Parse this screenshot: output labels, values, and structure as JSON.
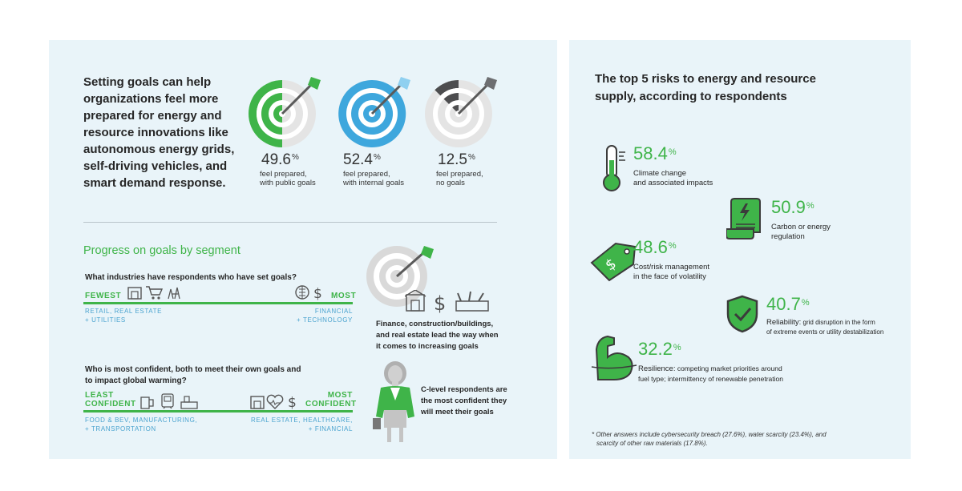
{
  "intro": "Setting goals can help organizations feel more prepared for energy and resource innovations like autonomous energy grids, self-driving vehicles, and smart demand response.",
  "targets": [
    {
      "value": "49.6",
      "unit": "%",
      "line1": "feel prepared,",
      "line2": "with public goals",
      "color": "#3fb449",
      "fraction": 0.496
    },
    {
      "value": "52.4",
      "unit": "%",
      "line1": "feel prepared,",
      "line2": "with internal goals",
      "color": "#3ea7dd",
      "fraction": 0.524
    },
    {
      "value": "12.5",
      "unit": "%",
      "line1": "feel prepared,",
      "line2": "no goals",
      "color": "#4d4d4f",
      "fraction": 0.125
    }
  ],
  "progress": {
    "title": "Progress on goals by segment",
    "q1": "What industries have respondents who have set goals?",
    "q1_left_label": "FEWEST",
    "q1_right_label": "MOST",
    "q1_left_sub": [
      "RETAIL, REAL ESTATE",
      "+ UTILITIES"
    ],
    "q1_right_sub": [
      "FINANCIAL",
      "+ TECHNOLOGY"
    ],
    "q2": [
      "Who is most confident, both to meet their own goals and",
      "to impact global warming?"
    ],
    "q2_left_label": [
      "LEAST",
      "CONFIDENT"
    ],
    "q2_right_label": [
      "MOST",
      "CONFIDENT"
    ],
    "q2_left_sub": [
      "FOOD & BEV, MANUFACTURING,",
      "+ TRANSPORTATION"
    ],
    "q2_right_sub": [
      "REAL ESTATE, HEALTHCARE,",
      "+ FINANCIAL"
    ],
    "lead_caption": [
      "Finance, construction/buildings,",
      "and real estate lead the way when",
      "it comes to increasing goals"
    ],
    "clevel_caption": [
      "C-level respondents are",
      "the most confident they",
      "will meet their goals"
    ]
  },
  "risks": {
    "title": [
      "The top 5 risks to energy and resource",
      "supply, according to respondents"
    ],
    "items": [
      {
        "value": "58.4",
        "unit": "%",
        "lines": [
          "Climate change",
          "and associated impacts"
        ],
        "icon": "thermometer-icon"
      },
      {
        "value": "50.9",
        "unit": "%",
        "lines": [
          "Carbon or energy",
          "regulation"
        ],
        "icon": "regulation-document-icon"
      },
      {
        "value": "48.6",
        "unit": "%",
        "lines": [
          "Cost/risk management",
          "in the face of volatility"
        ],
        "icon": "price-tag-icon"
      },
      {
        "value": "40.7",
        "unit": "%",
        "bold": "Reliability:",
        "lines": [
          " grid disruption in the form",
          "of extreme events or utility destabilization"
        ],
        "icon": "shield-check-icon"
      },
      {
        "value": "32.2",
        "unit": "%",
        "bold": "Resilience:",
        "lines": [
          " competing market priorities around",
          "fuel type; intermittency of renewable penetration"
        ],
        "icon": "flexed-arm-icon"
      }
    ],
    "footnote": [
      "* Other answers include cybersecurity breach (27.6%), water scarcity (23.4%), and",
      "scarcity of other raw materials (17.8%)."
    ]
  }
}
